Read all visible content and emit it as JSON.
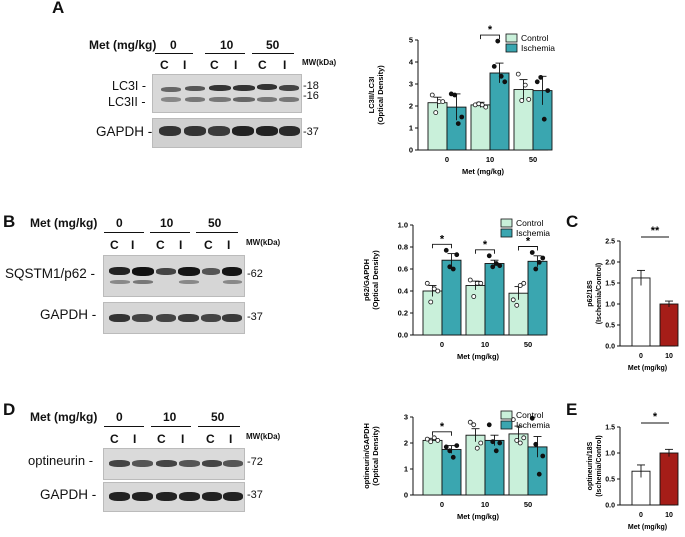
{
  "panels": {
    "A": {
      "letter": "A",
      "met_label": "Met (mg/kg)",
      "doses": [
        "0",
        "10",
        "50"
      ],
      "lanes": [
        "C",
        "I",
        "C",
        "I",
        "C",
        "I"
      ],
      "mw_label": "MW(kDa)",
      "bands": [
        {
          "name": "LC3I -",
          "mw": "-18"
        },
        {
          "name": "LC3II -",
          "mw": "-16"
        },
        {
          "name": "GAPDH -",
          "mw": "-37"
        }
      ]
    },
    "B": {
      "letter": "B",
      "met_label": "Met (mg/kg)",
      "doses": [
        "0",
        "10",
        "50"
      ],
      "lanes": [
        "C",
        "I",
        "C",
        "I",
        "C",
        "I"
      ],
      "mw_label": "MW(kDa)",
      "bands": [
        {
          "name": "SQSTM1/p62 -",
          "mw": "-62"
        },
        {
          "name": "GAPDH -",
          "mw": "-37"
        }
      ]
    },
    "C": {
      "letter": "C"
    },
    "D": {
      "letter": "D",
      "met_label": "Met (mg/kg)",
      "doses": [
        "0",
        "10",
        "50"
      ],
      "lanes": [
        "C",
        "I",
        "C",
        "I",
        "C",
        "I"
      ],
      "mw_label": "MW(kDa)",
      "bands": [
        {
          "name": "optineurin -",
          "mw": "-72"
        },
        {
          "name": "GAPDH -",
          "mw": "-37"
        }
      ]
    },
    "E": {
      "letter": "E"
    }
  },
  "chart_data": [
    {
      "id": "chartA",
      "type": "bar",
      "categories": [
        "0",
        "10",
        "50"
      ],
      "series": [
        {
          "name": "Control",
          "color": "#c9f0da",
          "values": [
            2.15,
            2.05,
            2.75
          ],
          "errors": [
            0.25,
            0.12,
            0.45
          ],
          "points": [
            [
              2.5,
              1.7,
              2.2,
              2.2
            ],
            [
              2.05,
              2.1,
              2.05,
              1.95
            ],
            [
              3.45,
              2.25,
              2.95,
              2.3
            ]
          ]
        },
        {
          "name": "Ischemia",
          "color": "#3aa6b0",
          "values": [
            1.95,
            3.5,
            2.7
          ],
          "errors": [
            0.6,
            0.45,
            0.65
          ],
          "points": [
            [
              2.55,
              2.5,
              1.2,
              1.5
            ],
            [
              3.8,
              4.95,
              3.35,
              3.1
            ],
            [
              3.1,
              3.3,
              1.4,
              2.7
            ]
          ]
        }
      ],
      "ylim": [
        0,
        5
      ],
      "yticks": [
        0,
        1,
        2,
        3,
        4,
        5
      ],
      "ylabel_lines": [
        "LC3II/LC3I",
        "(Optical Density)"
      ],
      "xlabel": "Met (mg/kg)",
      "significance": [
        {
          "group": 1,
          "label": "*"
        }
      ],
      "legend": true
    },
    {
      "id": "chartB",
      "type": "bar",
      "categories": [
        "0",
        "10",
        "50"
      ],
      "series": [
        {
          "name": "Control",
          "color": "#c9f0da",
          "values": [
            0.4,
            0.45,
            0.38
          ],
          "errors": [
            0.05,
            0.04,
            0.06
          ],
          "points": [
            [
              0.47,
              0.3,
              0.42,
              0.4
            ],
            [
              0.5,
              0.35,
              0.47,
              0.47
            ],
            [
              0.32,
              0.27,
              0.45,
              0.47
            ]
          ]
        },
        {
          "name": "Ischemia",
          "color": "#3aa6b0",
          "values": [
            0.68,
            0.65,
            0.67
          ],
          "errors": [
            0.06,
            0.03,
            0.05
          ],
          "points": [
            [
              0.77,
              0.62,
              0.6,
              0.73
            ],
            [
              0.72,
              0.62,
              0.65,
              0.63
            ],
            [
              0.75,
              0.6,
              0.66,
              0.7
            ]
          ]
        }
      ],
      "ylim": [
        0,
        1.0
      ],
      "yticks": [
        0,
        0.2,
        0.4,
        0.6,
        0.8,
        1.0
      ],
      "ytick_labels": [
        "0.0",
        "0.2",
        "0.4",
        "0.6",
        "0.8",
        "1.0"
      ],
      "ylabel_lines": [
        "p62/GAPDH",
        "(Optical Density)"
      ],
      "xlabel": "Met (mg/kg)",
      "significance": [
        {
          "group": 0,
          "label": "*"
        },
        {
          "group": 1,
          "label": "*"
        },
        {
          "group": 2,
          "label": "*"
        }
      ],
      "legend": true
    },
    {
      "id": "chartC",
      "type": "bar",
      "categories": [
        "0",
        "10"
      ],
      "series": [
        {
          "name": "",
          "colors": [
            "#ffffff",
            "#a51d18"
          ],
          "values": [
            1.62,
            1.0
          ],
          "errors": [
            0.18,
            0.07
          ]
        }
      ],
      "ylim": [
        0,
        2.5
      ],
      "yticks": [
        0.0,
        0.5,
        1.0,
        1.5,
        2.0,
        2.5
      ],
      "ylabel_lines": [
        "p62/18S",
        "(Ischemia/Control)"
      ],
      "xlabel": "Met (mg/kg)",
      "significance": [
        {
          "label": "**"
        }
      ]
    },
    {
      "id": "chartD",
      "type": "bar",
      "categories": [
        "0",
        "10",
        "50"
      ],
      "series": [
        {
          "name": "Control",
          "color": "#c9f0da",
          "values": [
            2.1,
            2.3,
            2.35
          ],
          "errors": [
            0.08,
            0.25,
            0.3
          ],
          "points": [
            [
              2.15,
              2.05,
              2.2,
              2.1
            ],
            [
              2.8,
              2.7,
              1.8,
              2.0
            ],
            [
              2.9,
              2.1,
              2.0,
              2.2
            ]
          ]
        },
        {
          "name": "Ischemia",
          "color": "#3aa6b0",
          "values": [
            1.75,
            2.1,
            1.85
          ],
          "errors": [
            0.15,
            0.2,
            0.4
          ],
          "points": [
            [
              1.85,
              1.7,
              1.45,
              1.9
            ],
            [
              2.7,
              2.05,
              1.7,
              2.0
            ],
            [
              2.95,
              1.95,
              0.8,
              1.5
            ]
          ]
        }
      ],
      "ylim": [
        0,
        3
      ],
      "yticks": [
        0,
        1,
        2,
        3
      ],
      "ylabel_lines": [
        "optineurin/GAPDH",
        "(Optical Density)"
      ],
      "xlabel": "Met (mg/kg)",
      "significance": [
        {
          "group": 0,
          "label": "*"
        }
      ],
      "legend": true
    },
    {
      "id": "chartE",
      "type": "bar",
      "categories": [
        "0",
        "10"
      ],
      "series": [
        {
          "name": "",
          "colors": [
            "#ffffff",
            "#a51d18"
          ],
          "values": [
            0.65,
            1.0
          ],
          "errors": [
            0.12,
            0.07
          ]
        }
      ],
      "ylim": [
        0,
        1.5
      ],
      "yticks": [
        0.0,
        0.5,
        1.0,
        1.5
      ],
      "ylabel_lines": [
        "optineurin/18S",
        "(Ischemia/Control)"
      ],
      "xlabel": "Met (mg/kg)",
      "significance": [
        {
          "label": "*"
        }
      ]
    }
  ]
}
